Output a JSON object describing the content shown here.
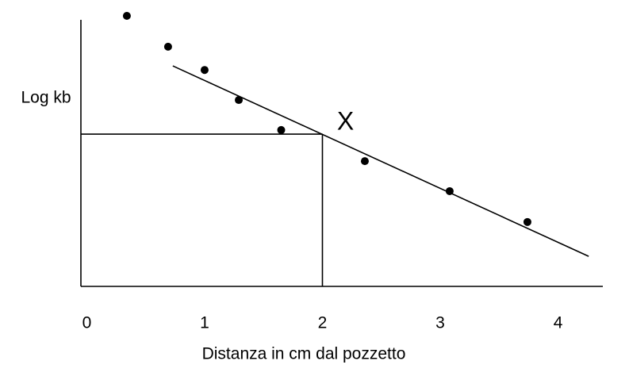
{
  "chart_data": {
    "type": "scatter",
    "x_label": "Distanza in cm dal pozzetto",
    "y_label": "Log kb",
    "x": [
      0.34,
      0.69,
      1.0,
      1.29,
      1.65,
      2.36,
      3.08,
      3.74
    ],
    "values": [
      10.0,
      8.86,
      8.0,
      6.89,
      5.78,
      4.63,
      3.52,
      2.38
    ],
    "color": "#000000",
    "xlim": [
      -0.05,
      4.38
    ],
    "ylim": [
      0,
      10
    ],
    "xticks": [
      0,
      1,
      2,
      3,
      4
    ],
    "fit_line": {
      "x": [
        0.73,
        4.26
      ],
      "y": [
        8.15,
        1.11
      ]
    },
    "marker": {
      "label": "X",
      "x": 2,
      "y": 5.63
    }
  }
}
